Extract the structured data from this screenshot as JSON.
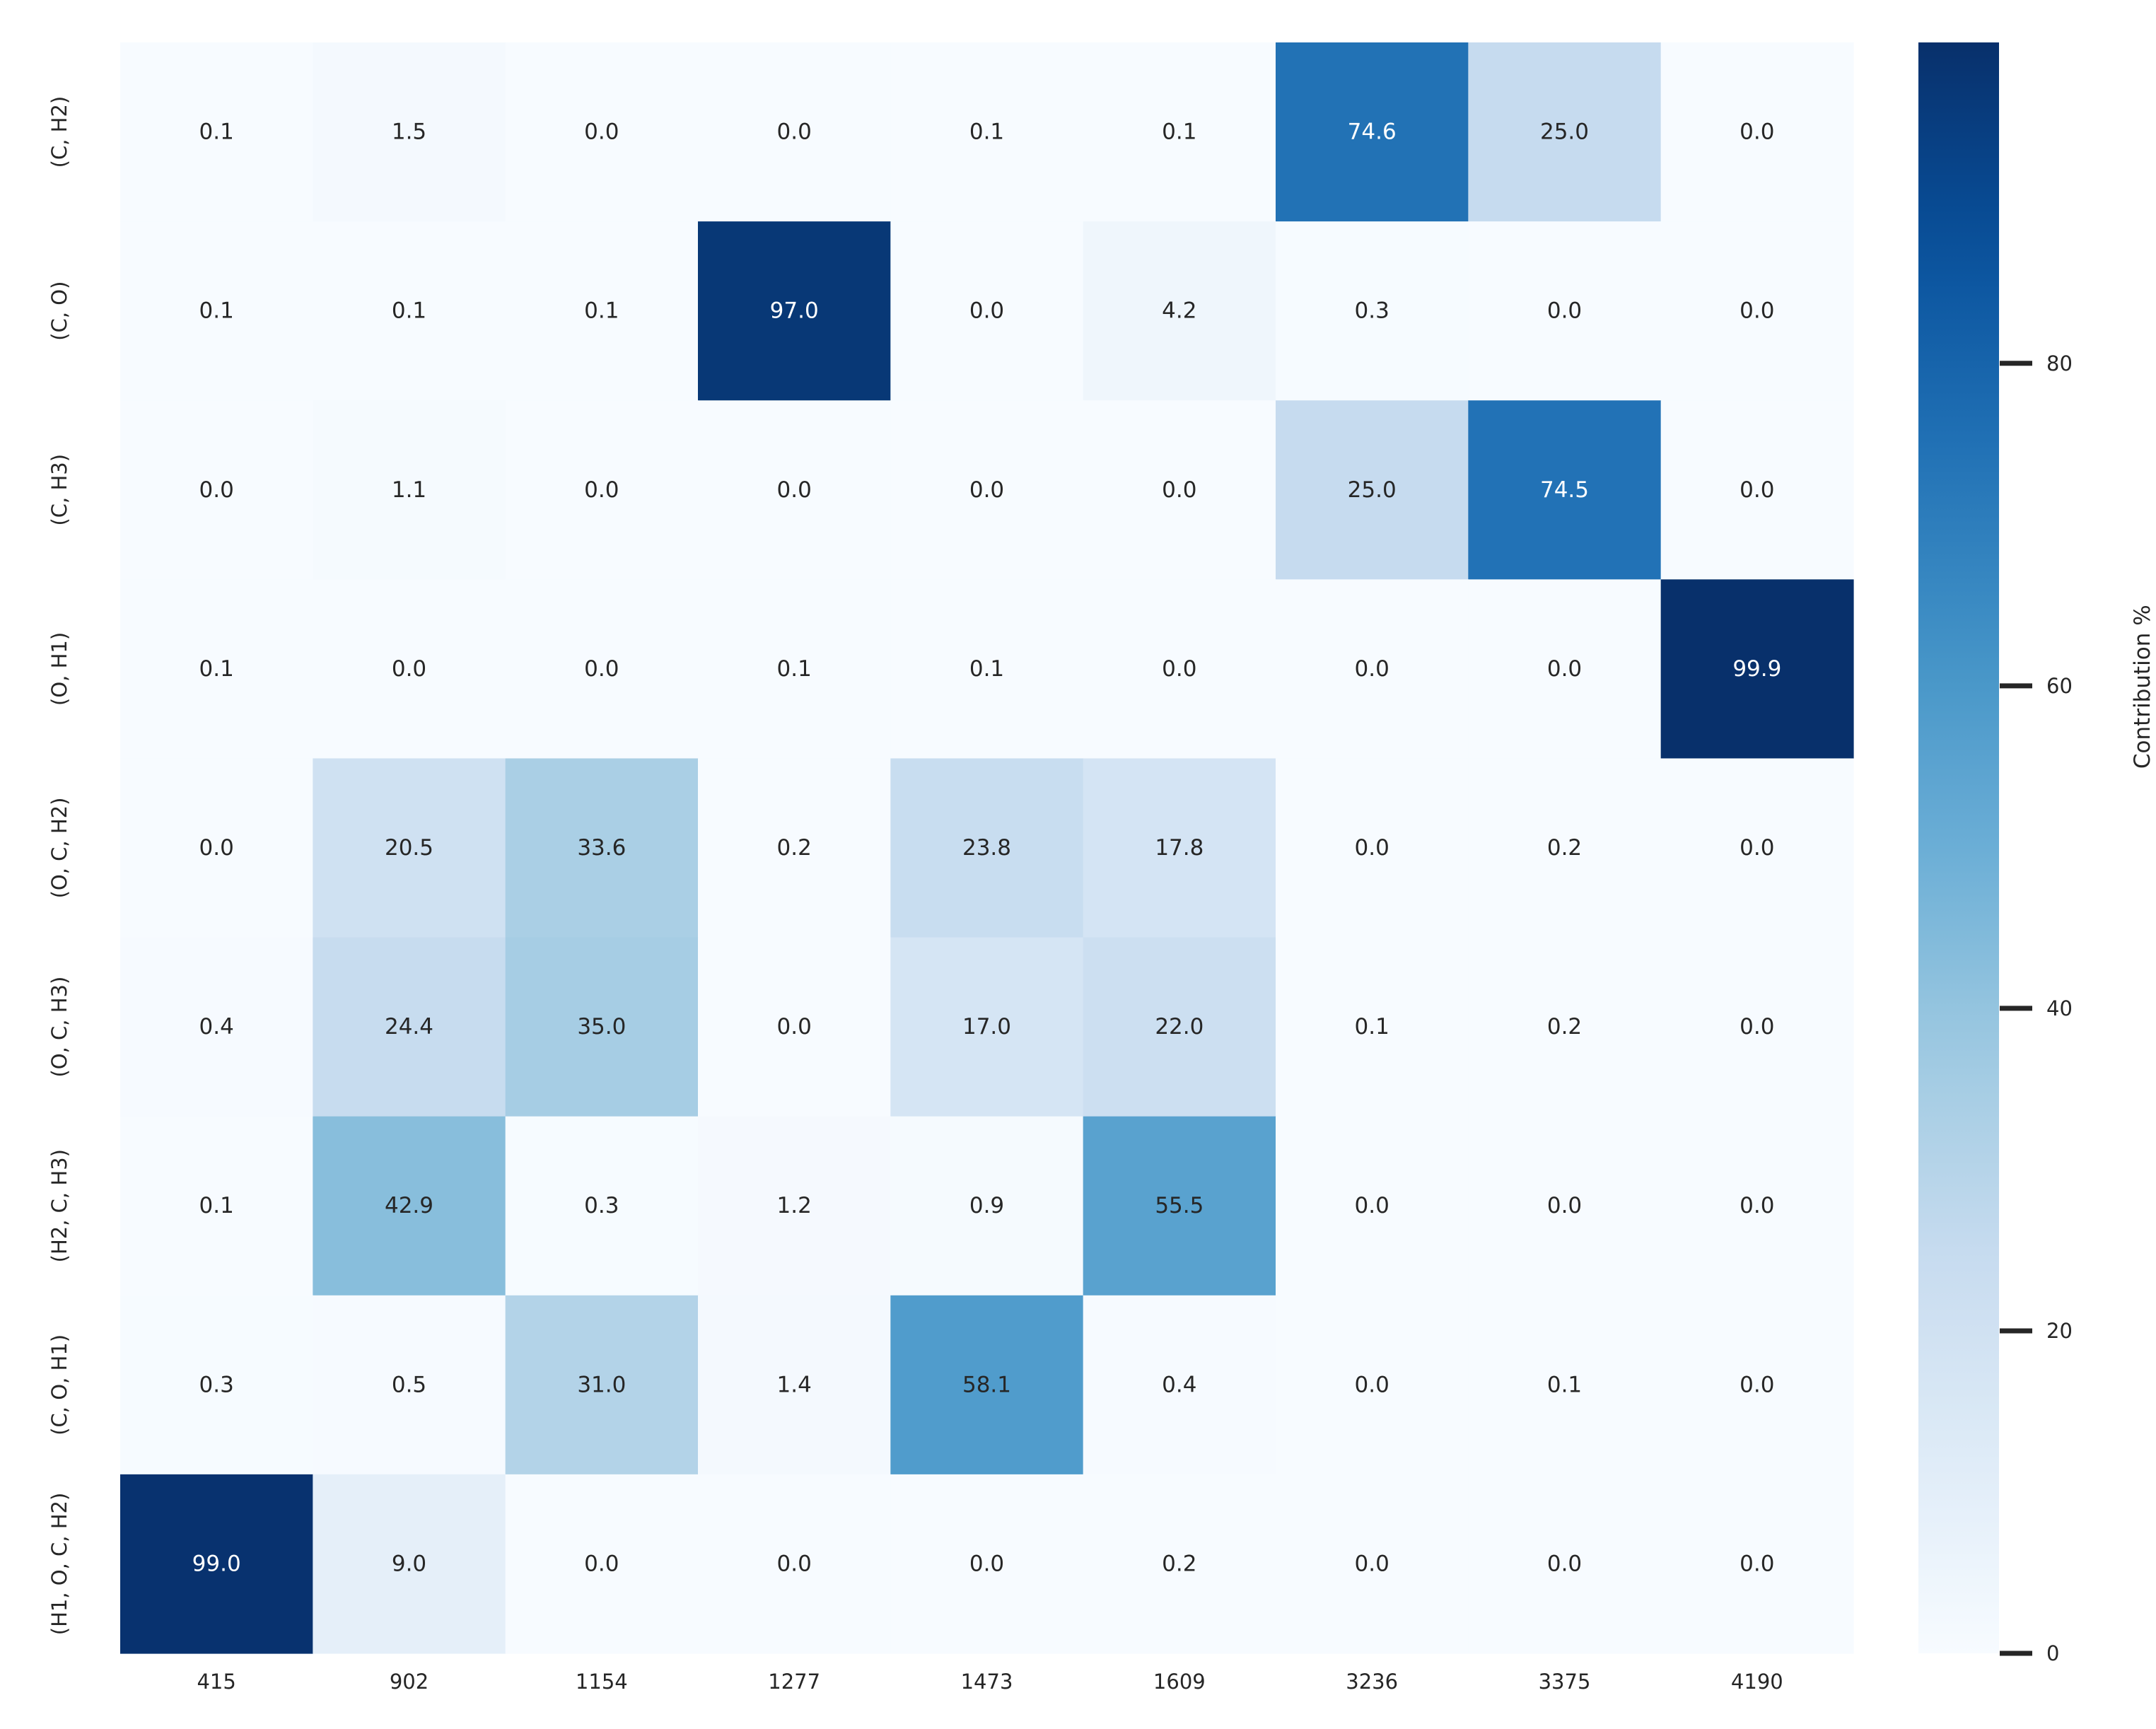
{
  "chart_data": {
    "type": "heatmap",
    "title": "",
    "xlabel": "",
    "ylabel": "",
    "x_categories": [
      "415",
      "902",
      "1154",
      "1277",
      "1473",
      "1609",
      "3236",
      "3375",
      "4190"
    ],
    "y_categories": [
      "(C, H2)",
      "(C, O)",
      "(C, H3)",
      "(O, H1)",
      "(O, C, H2)",
      "(O, C, H3)",
      "(H2, C, H3)",
      "(C, O, H1)",
      "(H1, O, C, H2)"
    ],
    "values": [
      [
        0.1,
        1.5,
        0.0,
        0.0,
        0.1,
        0.1,
        74.6,
        25.0,
        0.0
      ],
      [
        0.1,
        0.1,
        0.1,
        97.0,
        0.0,
        4.2,
        0.3,
        0.0,
        0.0
      ],
      [
        0.0,
        1.1,
        0.0,
        0.0,
        0.0,
        0.0,
        25.0,
        74.5,
        0.0
      ],
      [
        0.1,
        0.0,
        0.0,
        0.1,
        0.1,
        0.0,
        0.0,
        0.0,
        99.9
      ],
      [
        0.0,
        20.5,
        33.6,
        0.2,
        23.8,
        17.8,
        0.0,
        0.2,
        0.0
      ],
      [
        0.4,
        24.4,
        35.0,
        0.0,
        17.0,
        22.0,
        0.1,
        0.2,
        0.0
      ],
      [
        0.1,
        42.9,
        0.3,
        1.2,
        0.9,
        55.5,
        0.0,
        0.0,
        0.0
      ],
      [
        0.3,
        0.5,
        31.0,
        1.4,
        58.1,
        0.4,
        0.0,
        0.1,
        0.0
      ],
      [
        99.0,
        9.0,
        0.0,
        0.0,
        0.0,
        0.2,
        0.0,
        0.0,
        0.0
      ]
    ],
    "value_format": "0.1f",
    "colormap": "Blues",
    "vmin": 0,
    "vmax": 99.9,
    "colorbar": {
      "label": "Contribution %",
      "ticks": [
        0,
        20,
        40,
        60,
        80
      ]
    },
    "grid": false
  }
}
